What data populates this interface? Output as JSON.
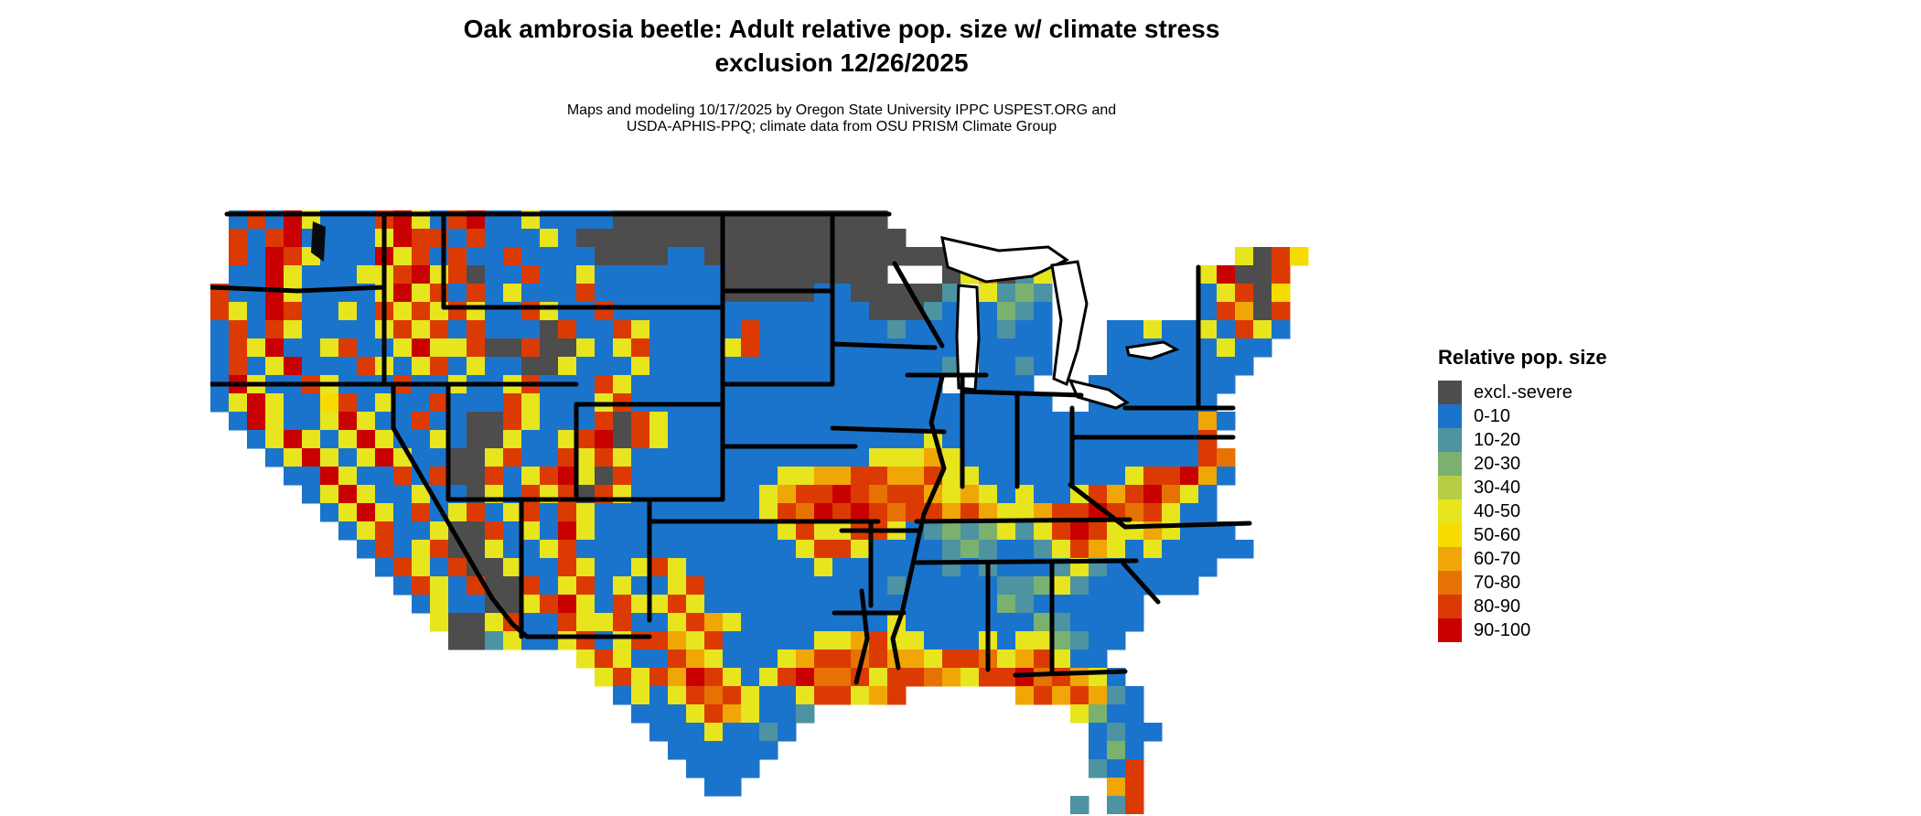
{
  "title": {
    "line1": "Oak ambrosia beetle: Adult relative pop. size w/ climate stress",
    "line2": "exclusion 12/26/2025"
  },
  "subtitle": {
    "line1": "Maps and modeling 10/17/2025 by Oregon State University IPPC USPEST.ORG and",
    "line2": "USDA-APHIS-PPQ; climate data from OSU PRISM Climate Group"
  },
  "legend": {
    "title": "Relative pop. size",
    "items": [
      {
        "label": "excl.-severe",
        "color": "#4D4D4D"
      },
      {
        "label": "0-10",
        "color": "#1B74CB"
      },
      {
        "label": "10-20",
        "color": "#4D93A2"
      },
      {
        "label": "20-30",
        "color": "#7BB16E"
      },
      {
        "label": "30-40",
        "color": "#B5CE45"
      },
      {
        "label": "40-50",
        "color": "#E7E51E"
      },
      {
        "label": "50-60",
        "color": "#F6DB00"
      },
      {
        "label": "60-70",
        "color": "#F0A607"
      },
      {
        "label": "70-80",
        "color": "#E67204"
      },
      {
        "label": "80-90",
        "color": "#DB3B02"
      },
      {
        "label": "90-100",
        "color": "#C80000"
      }
    ]
  },
  "map": {
    "cols": 66,
    "rows": 33,
    "cell": 20,
    "border_color": "#000000",
    "water_color": "#ffffff",
    "palette": {
      "g": "#4D4D4D",
      "B": "#1B74CB",
      "t": "#4D93A2",
      "G": "#7BB16E",
      "l": "#B5CE45",
      "y": "#E7E51E",
      "Y": "#F6DB00",
      "o": "#F0A607",
      "O": "#E67204",
      "r": "#DB3B02",
      "R": "#C80000"
    },
    "grid": [
      ".BrBRyBBBrRyBrRBByBBBBggggggggggggggg.............................",
      ".rBrRBBBByRrrBrBBByBgggggggggggggggggg............................",
      ".rBRryBBBRyrBrBBrBBBBggggBBgggggggggggggg...............ygrY.......",
      ".BBRyBBByyrRyrgBBrBByBBBBBBBggggggggg...gyogty........yRggr.......",
      "rBBRyBBBByRyrBrByBBBrBBBBBBBgggggBBgggggt.ytGt........ByrgY.......",
      "ryBRrBByBryryryBBryBBrBBBBBBBBBBBBBBgggtB.BGtB........Brogr.......",
      "BrBryBBBByryrBrBBBgrBBryBBBBBrBBBBBBBtBBB.BtBB...BByBByBryB.......",
      "BryRBByrBByRyyrggrggyByrBBBByrBBBBBBBBBBB.BBBB...BBBBBByBB........",
      "BrByRBBBryByrByBBggyBBByBBBBBBBBBBBBBBBBt.BBtB...BBBBBBBB.........",
      "BRyBBryBBBrBByBByrBBBryBBBBBBBBBBBBBBBBB.BBBB...BBBBBBBB.........",
      "ByRyBBYrByBBrBBBryBBByrBBBBBBBBBBBBBBBBBBBBBBB..BBBBBBB..........",
      ".BRyBByRyBBrBBggryBBBrgryBBBBBBBBBBBBBBBBBBBBBBBBBBBBBoB.........",
      "..ByRyByRyBByBggyBByrRgryBBBBBBBBBBBBBByBBBBBBBBBBBBBBr..........",
      "...ByRyByRyBBggyrBBryryBBBBBBBBBBBBByyyoyBBBBBBBBBBBBBrO..........",
      "....BBRyBBrBrggrByrRygrBBBBBBBByyoorrooryyBBBBBBBByrrRoB..........",
      ".....ByRyBByBBgyBryrgryBBBBBBByorrRrOrroyoyByBByrorROyB...........",
      "......ByRyBrByrByrBryBBBBBBBBByrORrRrOrroroyyorrRrOryBB...........",
      ".......ByrBByggrByBRyBBBBBBBBBByryyrryBtGtGytyrRryyoyBBB..........",
      "........BrByrggyBByrBBBBBBBBBBBByrryBBBBtGtBBtyroyByBBBBB.........",
      ".........BryBrggyBBryBByryBBBBBBByBBBBBBtBtBBBtytBBBBBB...........",
      "..........BryBrggrByrByBByrBBBBBBBBBBtBBBBBttGytBBBBBB............",
      "...........ByBBggyrRyBryyryBBBBBBBBBBBBBBBBGtBBBBBB..............",
      "............yggyrBBryyrBByroyBBBBBBBByBBBBBBBGtBBBB...............",
      ".............ggtyBByrByrroyrBBBBByyoryyBBByByyGtBB................",
      "....................yryBBroyBBByorrOrooyrrOyoryBB.................",
      ".....................yryroRryByrROOryrrOoyrrROroyB................",
      "......................ByByrOryBByrryor......ororotB...............",
      ".......................BBByroyBBt..............yGBB...............",
      "........................BBByBBtB................BtBB..............",
      ".........................BBBBBB.................BGB...............",
      "..........................BBBB..................tBr...............",
      "...........................BB....................or...............",
      "...............................................t.tr..............."
    ],
    "borders": [
      [
        [
          18,
          4
        ],
        [
          742,
          4
        ]
      ],
      [
        [
          0,
          84
        ],
        [
          95,
          88
        ],
        [
          190,
          84
        ]
      ],
      [
        [
          0,
          190
        ],
        [
          400,
          190
        ]
      ],
      [
        [
          255,
          106
        ],
        [
          560,
          106
        ]
      ],
      [
        [
          400,
          212
        ],
        [
          560,
          212
        ]
      ],
      [
        [
          260,
          316
        ],
        [
          560,
          316
        ]
      ],
      [
        [
          560,
          88
        ],
        [
          680,
          88
        ]
      ],
      [
        [
          560,
          190
        ],
        [
          680,
          190
        ]
      ],
      [
        [
          560,
          258
        ],
        [
          705,
          258
        ]
      ],
      [
        [
          480,
          340
        ],
        [
          730,
          340
        ]
      ],
      [
        [
          680,
          146
        ],
        [
          792,
          150
        ]
      ],
      [
        [
          680,
          238
        ],
        [
          802,
          242
        ]
      ],
      [
        [
          690,
          350
        ],
        [
          775,
          350
        ]
      ],
      [
        [
          762,
          180
        ],
        [
          848,
          180
        ]
      ],
      [
        [
          822,
          198
        ],
        [
          952,
          202
        ]
      ],
      [
        [
          772,
          340
        ],
        [
          1005,
          338
        ]
      ],
      [
        [
          772,
          385
        ],
        [
          1012,
          383
        ]
      ],
      [
        [
          1000,
          346
        ],
        [
          1136,
          342
        ]
      ],
      [
        [
          942,
          248
        ],
        [
          1118,
          248
        ]
      ],
      [
        [
          1000,
          216
        ],
        [
          1118,
          216
        ]
      ],
      [
        [
          880,
          508
        ],
        [
          1000,
          504
        ]
      ],
      [
        [
          682,
          440
        ],
        [
          758,
          440
        ]
      ],
      [
        [
          190,
          4
        ],
        [
          190,
          190
        ]
      ],
      [
        [
          255,
          4
        ],
        [
          255,
          106
        ]
      ],
      [
        [
          560,
          4
        ],
        [
          560,
          316
        ]
      ],
      [
        [
          680,
          4
        ],
        [
          680,
          190
        ]
      ],
      [
        [
          260,
          190
        ],
        [
          260,
          316
        ]
      ],
      [
        [
          400,
          212
        ],
        [
          400,
          316
        ]
      ],
      [
        [
          340,
          316
        ],
        [
          340,
          466
        ]
      ],
      [
        [
          480,
          316
        ],
        [
          480,
          448
        ]
      ],
      [
        [
          722,
          340
        ],
        [
          722,
          432
        ]
      ],
      [
        [
          850,
          385
        ],
        [
          850,
          502
        ]
      ],
      [
        [
          920,
          385
        ],
        [
          920,
          506
        ]
      ],
      [
        [
          1080,
          62
        ],
        [
          1080,
          214
        ]
      ],
      [
        [
          942,
          216
        ],
        [
          942,
          300
        ]
      ],
      [
        [
          822,
          182
        ],
        [
          822,
          302
        ]
      ],
      [
        [
          882,
          200
        ],
        [
          882,
          302
        ]
      ],
      [
        [
          800,
          182
        ],
        [
          788,
          232
        ],
        [
          802,
          282
        ],
        [
          780,
          332
        ],
        [
          768,
          386
        ],
        [
          756,
          440
        ],
        [
          746,
          468
        ],
        [
          752,
          500
        ]
      ],
      [
        [
          712,
          416
        ],
        [
          718,
          468
        ],
        [
          706,
          516
        ]
      ],
      [
        [
          748,
          58
        ],
        [
          772,
          100
        ],
        [
          800,
          148
        ]
      ],
      [
        [
          200,
          190
        ],
        [
          200,
          238
        ],
        [
          308,
          424
        ]
      ],
      [
        [
          308,
          424
        ],
        [
          330,
          452
        ],
        [
          346,
          466
        ],
        [
          480,
          466
        ]
      ],
      [
        [
          940,
          300
        ],
        [
          1000,
          346
        ]
      ],
      [
        [
          998,
          386
        ],
        [
          1036,
          428
        ]
      ]
    ],
    "lakes": [
      [
        [
          800,
          30
        ],
        [
          862,
          44
        ],
        [
          916,
          40
        ],
        [
          936,
          54
        ],
        [
          898,
          72
        ],
        [
          848,
          78
        ],
        [
          806,
          62
        ]
      ],
      [
        [
          818,
          82
        ],
        [
          838,
          84
        ],
        [
          840,
          140
        ],
        [
          836,
          196
        ],
        [
          818,
          194
        ],
        [
          816,
          138
        ]
      ],
      [
        [
          920,
          60
        ],
        [
          948,
          56
        ],
        [
          958,
          102
        ],
        [
          948,
          152
        ],
        [
          936,
          190
        ],
        [
          922,
          184
        ],
        [
          930,
          120
        ]
      ],
      [
        [
          940,
          186
        ],
        [
          982,
          196
        ],
        [
          1002,
          210
        ],
        [
          990,
          216
        ],
        [
          948,
          204
        ]
      ],
      [
        [
          1002,
          150
        ],
        [
          1042,
          144
        ],
        [
          1056,
          152
        ],
        [
          1028,
          162
        ],
        [
          1004,
          158
        ]
      ]
    ],
    "sounds": [
      [
        [
          112,
          12
        ],
        [
          126,
          18
        ],
        [
          124,
          56
        ],
        [
          110,
          46
        ]
      ]
    ]
  }
}
